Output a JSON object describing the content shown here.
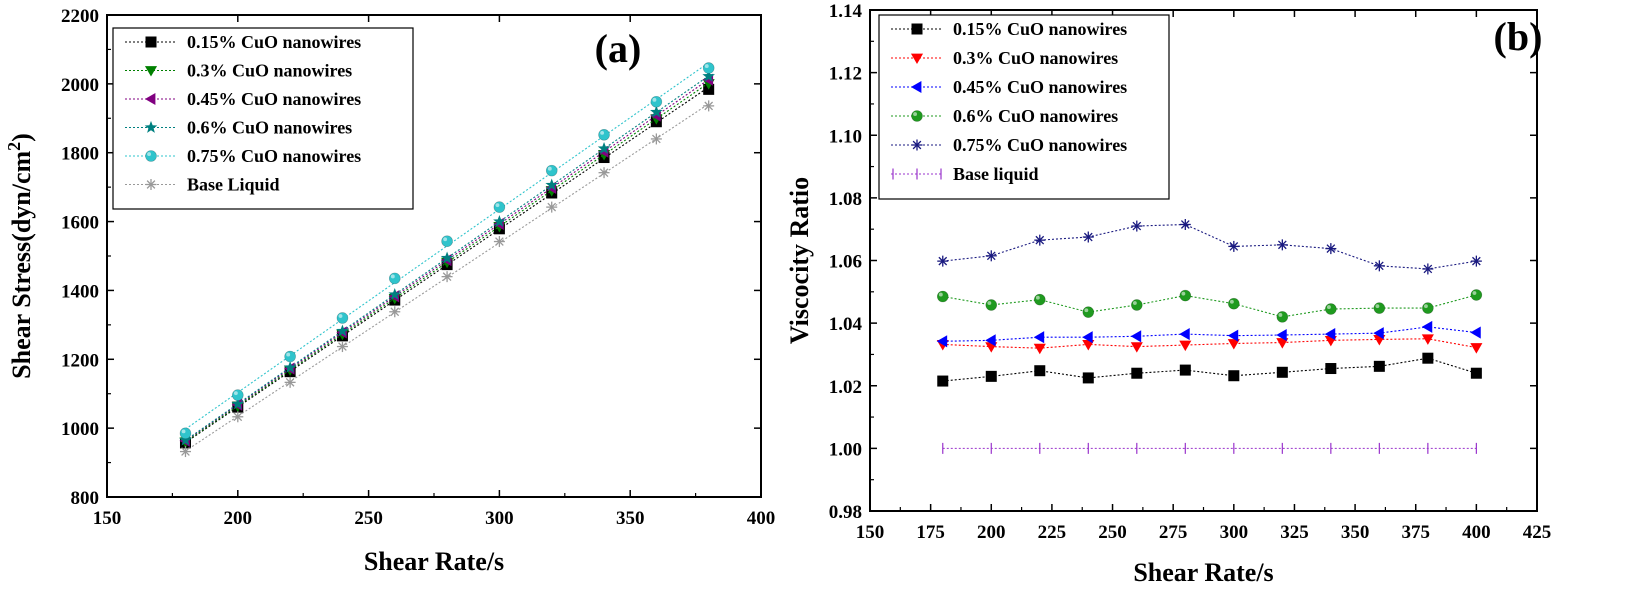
{
  "chart_data": [
    {
      "type": "scatter",
      "panel_label": "(a)",
      "title": "",
      "xlabel": "Shear Rate/s",
      "ylabel": "Shear Stress(dyn/cm",
      "ylabel_sup": "2",
      "ylabel_end": ")",
      "xlim": [
        150,
        400
      ],
      "ylim": [
        800,
        2200
      ],
      "xticks": [
        150,
        200,
        250,
        300,
        350,
        400
      ],
      "yticks": [
        800,
        1000,
        1200,
        1400,
        1600,
        1800,
        2000,
        2200
      ],
      "xtick_labels": [
        "150",
        "200",
        "250",
        "300",
        "350",
        "400"
      ],
      "ytick_labels": [
        "800",
        "1000",
        "1200",
        "1400",
        "1600",
        "1800",
        "2000",
        "2200"
      ],
      "legend_position": "top-left",
      "x": [
        180,
        200,
        220,
        240,
        260,
        280,
        300,
        320,
        340,
        360,
        380
      ],
      "series": [
        {
          "name": "0.15% CuO nanowires",
          "marker": "square",
          "color": "#000000",
          "values": [
            957,
            1061,
            1164,
            1268,
            1372,
            1475,
            1579,
            1683,
            1786,
            1890,
            1984
          ]
        },
        {
          "name": "0.3% CuO nanowires",
          "marker": "triangle-down",
          "color": "#008000",
          "values": [
            960,
            1064,
            1169,
            1273,
            1377,
            1482,
            1586,
            1690,
            1795,
            1899,
            2001
          ]
        },
        {
          "name": "0.45% CuO nanowires",
          "marker": "triangle-left",
          "color": "#800080",
          "values": [
            963,
            1068,
            1173,
            1278,
            1383,
            1488,
            1593,
            1698,
            1803,
            1908,
            2012
          ]
        },
        {
          "name": "0.6% CuO nanowires",
          "marker": "star",
          "color": "#008080",
          "values": [
            965,
            1070,
            1176,
            1282,
            1388,
            1494,
            1600,
            1706,
            1812,
            1918,
            2022
          ]
        },
        {
          "name": "0.75% CuO nanowires",
          "marker": "circle",
          "color": "#2fc4cc",
          "values": [
            985,
            1096,
            1208,
            1320,
            1435,
            1543,
            1642,
            1748,
            1852,
            1948,
            2046
          ]
        },
        {
          "name": "Base Liquid",
          "marker": "asterisk",
          "color": "#999999",
          "values": [
            932,
            1033,
            1133,
            1237,
            1338,
            1440,
            1542,
            1642,
            1742,
            1840,
            1936
          ]
        }
      ]
    },
    {
      "type": "line",
      "panel_label": "(b)",
      "title": "",
      "xlabel": "Shear Rate/s",
      "ylabel": "Viscocity Ratio",
      "xlim": [
        150,
        425
      ],
      "ylim": [
        0.98,
        1.14
      ],
      "xticks": [
        150,
        175,
        200,
        225,
        250,
        275,
        300,
        325,
        350,
        375,
        400,
        425
      ],
      "yticks": [
        0.98,
        1.0,
        1.02,
        1.04,
        1.06,
        1.08,
        1.1,
        1.12,
        1.14
      ],
      "xtick_labels": [
        "150",
        "175",
        "200",
        "225",
        "250",
        "275",
        "300",
        "325",
        "350",
        "375",
        "400",
        "425"
      ],
      "ytick_labels": [
        "0.98",
        "1.00",
        "1.02",
        "1.04",
        "1.06",
        "1.08",
        "1.10",
        "1.12",
        "1.14"
      ],
      "legend_position": "top-left",
      "x": [
        180,
        200,
        220,
        240,
        260,
        280,
        300,
        320,
        340,
        360,
        380,
        400
      ],
      "series": [
        {
          "name": "0.15% CuO nanowires",
          "marker": "square",
          "color": "#000000",
          "values": [
            1.0215,
            1.023,
            1.0248,
            1.0225,
            1.024,
            1.025,
            1.0232,
            1.0243,
            1.0255,
            1.0262,
            1.0288,
            1.024
          ]
        },
        {
          "name": "0.3% CuO nanowires",
          "marker": "triangle-down",
          "color": "#ff0000",
          "values": [
            1.0332,
            1.0325,
            1.032,
            1.0332,
            1.0325,
            1.033,
            1.0335,
            1.0338,
            1.0345,
            1.0348,
            1.035,
            1.0322
          ]
        },
        {
          "name": "0.45% CuO nanowires",
          "marker": "triangle-left",
          "color": "#0000ff",
          "values": [
            1.0342,
            1.0345,
            1.0355,
            1.0355,
            1.0358,
            1.0365,
            1.036,
            1.0362,
            1.0365,
            1.0368,
            1.0388,
            1.037
          ]
        },
        {
          "name": "0.6% CuO nanowires",
          "marker": "circle",
          "color": "#1f9a1f",
          "values": [
            1.0485,
            1.0458,
            1.0475,
            1.0435,
            1.0458,
            1.0488,
            1.0462,
            1.042,
            1.0445,
            1.0448,
            1.0448,
            1.049
          ]
        },
        {
          "name": "0.75% CuO nanowires",
          "marker": "asterisk",
          "color": "#1a1a80",
          "values": [
            1.0598,
            1.0615,
            1.0665,
            1.0675,
            1.071,
            1.0715,
            1.0645,
            1.065,
            1.0638,
            1.0583,
            1.0573,
            1.0598
          ]
        },
        {
          "name": "Base liquid",
          "marker": "plus",
          "color": "#9933cc",
          "values": [
            1.0,
            1.0,
            1.0,
            1.0,
            1.0,
            1.0,
            1.0,
            1.0,
            1.0,
            1.0,
            1.0,
            1.0
          ]
        }
      ]
    }
  ]
}
